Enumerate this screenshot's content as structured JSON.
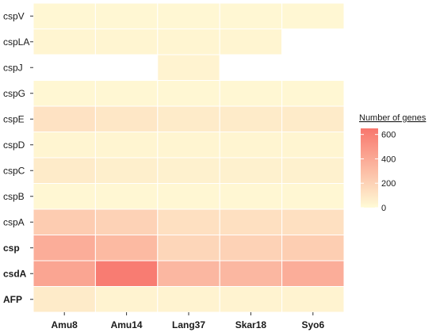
{
  "chart_data": {
    "type": "heatmap",
    "title": "",
    "xlabel": "",
    "ylabel": "",
    "x_categories": [
      "Amu8",
      "Amu14",
      "Lang37",
      "Skar18",
      "Syo6"
    ],
    "y_categories": [
      "cspV",
      "cspLA",
      "cspJ",
      "cspG",
      "cspE",
      "cspD",
      "cspC",
      "cspB",
      "cspA",
      "csp",
      "csdA",
      "AFP"
    ],
    "y_bold": [
      "csp",
      "csdA",
      "AFP"
    ],
    "values": [
      [
        20,
        20,
        20,
        20,
        20
      ],
      [
        30,
        30,
        30,
        30,
        null
      ],
      [
        null,
        null,
        40,
        null,
        null
      ],
      [
        20,
        20,
        20,
        20,
        20
      ],
      [
        120,
        100,
        80,
        80,
        80
      ],
      [
        30,
        30,
        30,
        30,
        30
      ],
      [
        80,
        60,
        50,
        50,
        50
      ],
      [
        20,
        20,
        20,
        20,
        20
      ],
      [
        230,
        200,
        130,
        130,
        130
      ],
      [
        380,
        320,
        180,
        200,
        220
      ],
      [
        420,
        620,
        330,
        330,
        380
      ],
      [
        80,
        40,
        40,
        40,
        40
      ]
    ],
    "color_scale": {
      "min": 0,
      "max": 650,
      "low_color": "#fffbd6",
      "high_color": "#f8766d",
      "missing_color": "#ffffff"
    },
    "legend": {
      "title": "Number of genes",
      "ticks": [
        0,
        200,
        400,
        600
      ],
      "position": "right"
    },
    "panel_background": "#ebebeb",
    "grid": false
  }
}
